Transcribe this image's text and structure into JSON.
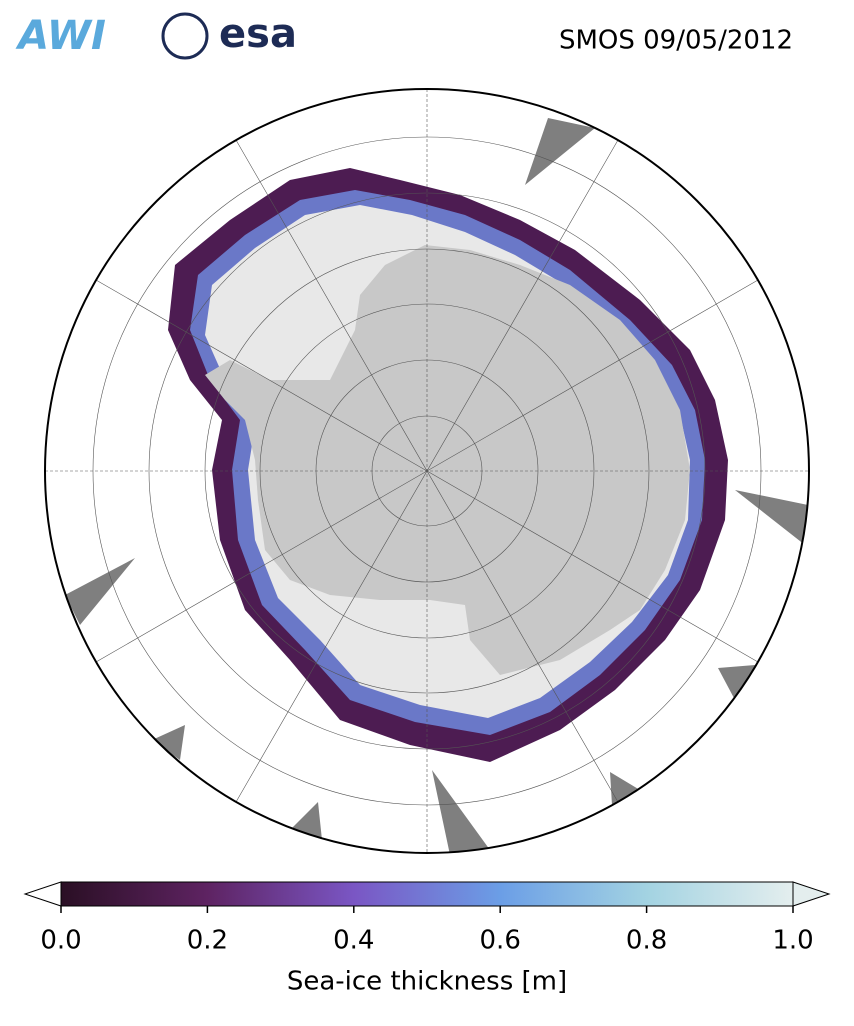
{
  "header": {
    "logos": [
      "AWI",
      "esa"
    ],
    "title": "SMOS 09/05/2012"
  },
  "colorbar": {
    "label": "Sea-ice thickness [m]",
    "lim": [
      0,
      1
    ],
    "ticks": [
      {
        "value": 0,
        "label": "0.0"
      },
      {
        "value": 0.2,
        "label": "0.2"
      },
      {
        "value": 0.4,
        "label": "0.4"
      },
      {
        "value": 0.6,
        "label": "0.6"
      },
      {
        "value": 0.8,
        "label": "0.8"
      },
      {
        "value": 1,
        "label": "1.0"
      }
    ]
  }
}
